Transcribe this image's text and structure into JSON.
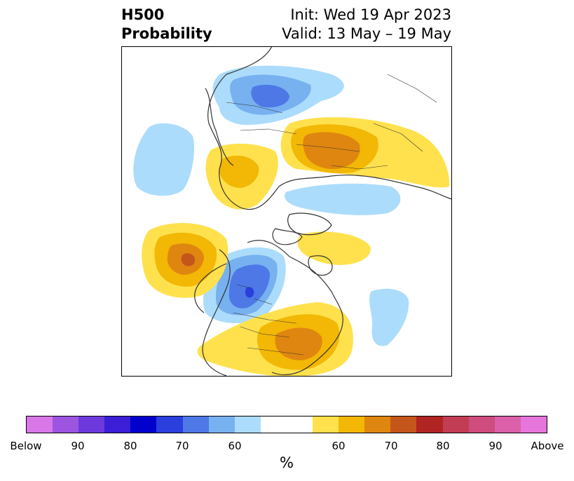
{
  "title": {
    "left_line1": "H500",
    "left_line2": "Probability",
    "init": "Init: Wed 19 Apr 2023",
    "valid": "Valid: 13 May – 19 May"
  },
  "colorbar": {
    "colors": [
      "#d977e9",
      "#9d55e0",
      "#6d39dc",
      "#3b1ed6",
      "#0000cd",
      "#2a3fdc",
      "#4d78e6",
      "#77b1f0",
      "#acdcfb",
      "#ffffff",
      "#ffffff",
      "#ffe14d",
      "#f3b705",
      "#df8610",
      "#c4561b",
      "#b02424",
      "#c23d53",
      "#cf4c7e",
      "#db60a9",
      "#e675dc"
    ],
    "ticks": [
      "Below",
      "90",
      "80",
      "70",
      "60",
      "60",
      "70",
      "80",
      "90",
      "Above"
    ],
    "unit_label": "%"
  },
  "map": {
    "projection": "polar-stereographic (North Pole)",
    "palette": {
      "below_light": "#acdcfb",
      "below_mid": "#77b1f0",
      "below_strong": "#4d78e6",
      "below_deep": "#2a3fdc",
      "above_light": "#ffe14d",
      "above_mid": "#f3b705",
      "above_strong": "#df8610",
      "above_deep": "#c4561b",
      "land_lines": "#333333"
    }
  }
}
